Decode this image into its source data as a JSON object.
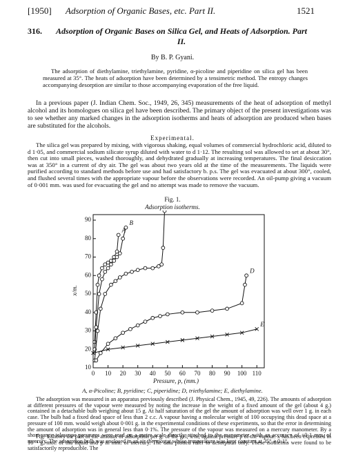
{
  "header": {
    "year": "[1950]",
    "running_title": "Adsorption of Organic Bases, etc. Part II.",
    "page": "1521"
  },
  "article": {
    "number": "316.",
    "title": "Adsorption of Organic Bases on Silica Gel, and Heats of Adsorption. Part II.",
    "author": "By B. P. Gyani."
  },
  "abstract": "The adsorption of diethylamine, triethylamine, pyridine, α-picoline and piperidine on silica gel has been measured at 35°. The heats of adsorption have been determined by a tensimetric method. The entropy changes accompanying desorption are similar to those accompanying evaporation of the free liquid.",
  "paragraphs": [
    "In a previous paper (J. Indian Chem. Soc., 1949, 26, 345) measurements of the heat of adsorption of methyl alcohol and its homologues on silica gel have been described. The primary object of the present investigations was to see whether any marked changes in the adsorption isotherms and heats of adsorption are produced when bases are substituted for the alcohols.",
    "The silica gel was prepared by mixing, with vigorous shaking, equal volumes of commercial hydrochloric acid, diluted to d 1·05, and commercial sodium silicate syrup diluted with water to d 1·12. The resulting sol was allowed to set at about 30°, then cut into small pieces, washed thoroughly, and dehydrated gradually at increasing temperatures. The final desiccation was at 350° in a current of dry air. The gel was about two years old at the time of the measurements. The liquids were purified according to standard methods before use and had satisfactory b. p.s. The gel was evacuated at about 300°, cooled, and flushed several times with the appropriate vapour before the observations were recorded. An oil-pump giving a vacuum of 0·001 mm. was used for evacuating the gel and no attempt was made to remove the vacuum.",
    "The adsorption was measured in an apparatus previously described (J. Physical Chem., 1945, 49, 226). The amounts of adsorption at different pressures of the vapour were measured by noting the increase in the weight of a fixed amount of the gel (about 4 g.) contained in a detachable bulb weighing about 15 g. At half saturation of the gel the amount of adsorption was well over 1 g. in each case. The bulb had a fixed dead space of less than 2 c.c. A vapour having a molecular weight of 100 occupying this dead space at a pressure of 100 mm. would weigh about 0·001 g. in the experimental conditions of these experiments, so that the error in determining the amount of adsorption was in general less than 0·1%. The pressure of the vapour was measured on a mercury manometer. By a short-range telescope pressures were read on a metre scale directly attached to the manometer, with an accuracy of ±0·1 mm. of mercury. The adsorption bulb was enclosed in an air thermostat whose temperature was kept constant at 35° ± 0·1°.",
    "Fig. 1 shows the plot of the amount of adsorption per g. of the gel, x/m, against pressure p of the vapour. x has been expressed in 10⁻⁴ g.-mol. of the liquid and p in mm. of mercury. The data plotted refer to desorption only. These isotherms were found to be satisfactorily reproducible. The"
  ],
  "section": "Experimental.",
  "figure": {
    "label": "Fig. 1.",
    "subtitle": "Adsorption isotherms.",
    "caption": "A, α-Picoline; B, pyridine; C, piperidine; D, triethylamine; E, diethylamine."
  },
  "chart_data": {
    "type": "line",
    "xlabel": "Pressure, p, (mm.)",
    "ylabel": "x/m.",
    "xlim": [
      0,
      115
    ],
    "xticks": [
      0,
      10,
      20,
      30,
      40,
      50,
      60,
      70,
      80,
      90,
      100,
      110
    ],
    "ylim": [
      10,
      93
    ],
    "yticks": [
      10,
      20,
      30,
      40,
      50,
      60,
      70,
      80,
      90
    ],
    "grid": false,
    "series": [
      {
        "name": "A",
        "color": "#111",
        "marker": "circle",
        "x": [
          1,
          2,
          3,
          4,
          6,
          8,
          10,
          12,
          14,
          16,
          17
        ],
        "values": [
          24,
          40,
          55,
          60,
          64,
          66,
          67,
          68,
          70,
          73,
          82
        ]
      },
      {
        "name": "B",
        "color": "#111",
        "marker": "circle",
        "x": [
          1,
          2,
          4,
          6,
          8,
          10,
          12,
          14,
          16,
          18,
          20,
          22
        ],
        "values": [
          20,
          32,
          50,
          58,
          62,
          64,
          66,
          68,
          70,
          72,
          80,
          86
        ]
      },
      {
        "name": "C",
        "color": "#111",
        "marker": "circle",
        "x": [
          1,
          3,
          5,
          8,
          12,
          15,
          18,
          22,
          26,
          30,
          35,
          40,
          44,
          46,
          47,
          48
        ],
        "values": [
          14,
          30,
          42,
          50,
          55,
          57,
          59,
          61,
          62,
          63,
          64,
          64,
          65,
          66,
          75,
          95
        ]
      },
      {
        "name": "D",
        "color": "#111",
        "marker": "circle",
        "x": [
          2,
          5,
          10,
          15,
          20,
          25,
          30,
          35,
          40,
          45,
          50,
          60,
          70,
          80,
          90,
          100,
          102,
          103
        ],
        "values": [
          14,
          18,
          23,
          26,
          29,
          31,
          33,
          35,
          37,
          38,
          39,
          40,
          40,
          41,
          42,
          45,
          55,
          60
        ]
      },
      {
        "name": "E",
        "color": "#111",
        "marker": "cross",
        "x": [
          0,
          10,
          20,
          30,
          40,
          50,
          60,
          70,
          80,
          90,
          100,
          110
        ],
        "values": [
          18,
          20,
          21,
          22,
          23,
          24,
          25,
          26,
          27,
          28,
          29,
          31
        ]
      }
    ]
  }
}
